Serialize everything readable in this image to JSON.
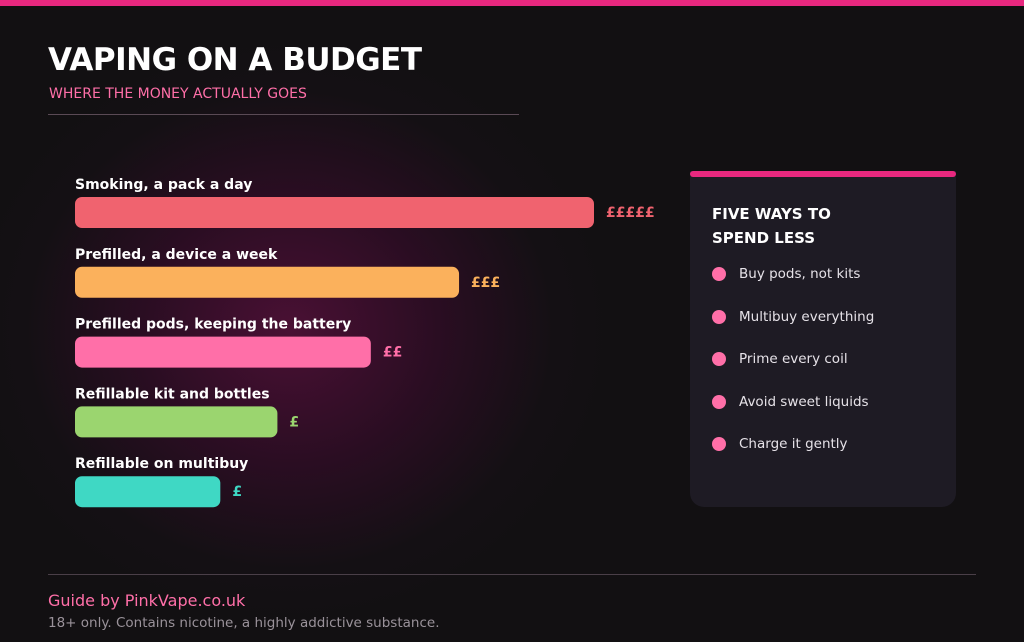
{
  "header": {
    "title": "VAPING ON A BUDGET",
    "subtitle": "WHERE THE MONEY ACTUALLY GOES"
  },
  "chart_data": {
    "type": "bar",
    "orientation": "horizontal",
    "categories": [
      "Smoking, a pack a day",
      "Prefilled, a device a week",
      "Prefilled pods, keeping the battery",
      "Refillable kit and bottles",
      "Refillable on multibuy"
    ],
    "values": [
      100,
      74,
      57,
      39,
      28
    ],
    "value_labels": [
      "£££££",
      "£££",
      "££",
      "£",
      "£"
    ],
    "colors": [
      "#f0636f",
      "#fbb15c",
      "#ff6fa8",
      "#9bd56f",
      "#3fd8c4"
    ],
    "xlim": [
      0,
      100
    ]
  },
  "tips": {
    "title": "FIVE WAYS TO SPEND LESS",
    "items": [
      "Buy pods, not kits",
      "Multibuy everything",
      "Prime every coil",
      "Avoid sweet liquids",
      "Charge it gently"
    ]
  },
  "footer": {
    "credit": "Guide by PinkVape.co.uk",
    "disclaimer": "18+ only. Contains nicotine, a highly addictive substance."
  }
}
